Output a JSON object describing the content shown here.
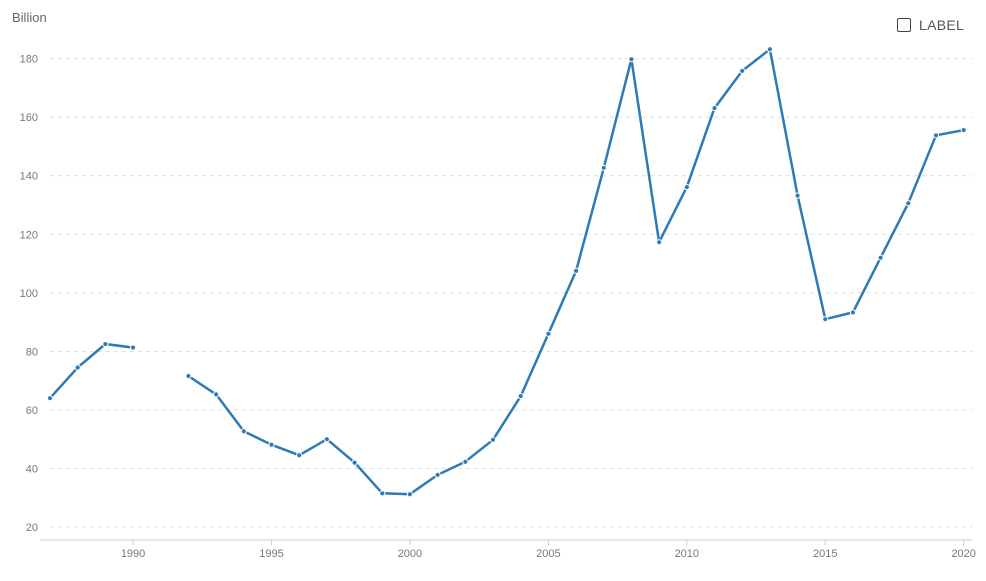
{
  "unit_label": "Billion",
  "label_toggle": {
    "text": "LABEL",
    "checked": false
  },
  "colors": {
    "line": "#2e7bb4",
    "grid": "#dddddd",
    "axis": "#cccccc",
    "tick_text": "#777777"
  },
  "chart_data": {
    "type": "line",
    "ylabel": "Billion",
    "ylim": [
      20,
      185
    ],
    "xlim": [
      1987,
      2020.3
    ],
    "yticks": [
      20,
      40,
      60,
      80,
      100,
      120,
      140,
      160,
      180
    ],
    "xticks": [
      1990,
      1995,
      2000,
      2005,
      2010,
      2015,
      2020
    ],
    "grid": true,
    "series": [
      {
        "x": [
          1987,
          1988,
          1989,
          1990,
          1991,
          1992,
          1993,
          1994,
          1995,
          1996,
          1997,
          1998,
          1999,
          2000,
          2001,
          2002,
          2003,
          2004,
          2005,
          2006,
          2007,
          2008,
          2009,
          2010,
          2011,
          2012,
          2013,
          2014,
          2015,
          2016,
          2017,
          2018,
          2019,
          2020
        ],
        "values": [
          64,
          74.5,
          82.5,
          81.3,
          null,
          71.6,
          65.3,
          52.7,
          48.1,
          44.5,
          50,
          42,
          31.5,
          31.2,
          37.8,
          42.3,
          49.8,
          64.7,
          86,
          107.5,
          142.7,
          179.8,
          117.3,
          136.1,
          163.1,
          175.8,
          183.2,
          133.2,
          91,
          93.3,
          112,
          130.6,
          153.8,
          155.6
        ]
      }
    ]
  }
}
